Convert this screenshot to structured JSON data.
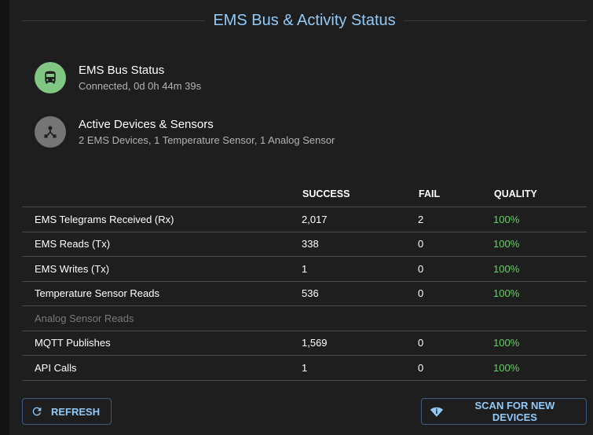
{
  "title": "EMS Bus & Activity Status",
  "status_items": [
    {
      "primary": "EMS Bus Status",
      "secondary": "Connected, 0d 0h 44m 39s",
      "icon": "bus-icon",
      "color": "#81c784"
    },
    {
      "primary": "Active Devices & Sensors",
      "secondary": "2 EMS Devices, 1 Temperature Sensor, 1 Analog Sensor",
      "icon": "device-hub-icon",
      "color": "#757575"
    }
  ],
  "table": {
    "headers": [
      "",
      "SUCCESS",
      "FAIL",
      "QUALITY"
    ],
    "rows": [
      [
        "EMS Telegrams Received (Rx)",
        "2,017",
        "2",
        "100%"
      ],
      [
        "EMS Reads (Tx)",
        "338",
        "0",
        "100%"
      ],
      [
        "EMS Writes (Tx)",
        "1",
        "0",
        "100%"
      ],
      [
        "Temperature Sensor Reads",
        "536",
        "0",
        "100%"
      ],
      [
        "Analog Sensor Reads",
        "",
        "",
        ""
      ],
      [
        "MQTT Publishes",
        "1,569",
        "0",
        "100%"
      ],
      [
        "API Calls",
        "1",
        "0",
        "100%"
      ]
    ]
  },
  "buttons": {
    "refresh": "REFRESH",
    "scan": "SCAN FOR NEW DEVICES"
  },
  "colors": {
    "accent": "#90caf9",
    "quality": "#5fd35f"
  }
}
